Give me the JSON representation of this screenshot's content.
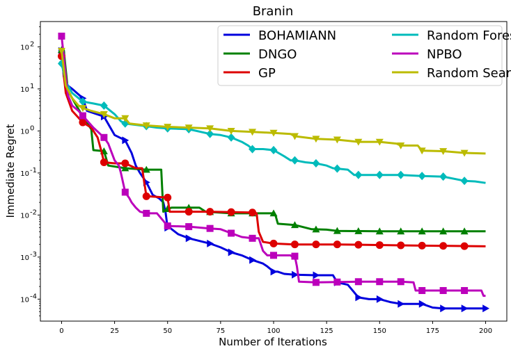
{
  "chart_data": {
    "type": "line",
    "title": "Branin",
    "xlabel": "Number of Iterations",
    "ylabel": "Immediate Regret",
    "yscale": "log",
    "xlim": [
      -10,
      210
    ],
    "ylim": [
      3e-05,
      400
    ],
    "xticks": [
      0,
      25,
      50,
      75,
      100,
      125,
      150,
      175,
      200
    ],
    "xtick_labels": [
      "0",
      "25",
      "50",
      "75",
      "100",
      "125",
      "150",
      "175",
      "200"
    ],
    "yticks": [
      0.0001,
      0.001,
      0.01,
      0.1,
      1,
      10,
      100
    ],
    "ytick_exponents": [
      "-4",
      "-3",
      "-2",
      "-1",
      "0",
      "1",
      "2"
    ],
    "legend_position": "top-right",
    "legend_columns": 2,
    "series": [
      {
        "name": "BOHAMIANN",
        "color": "#0000dd",
        "marker": "triangle-right",
        "points": [
          [
            0,
            80
          ],
          [
            1,
            20
          ],
          [
            2,
            13
          ],
          [
            5,
            10
          ],
          [
            10,
            6
          ],
          [
            12,
            3
          ],
          [
            20,
            2.2
          ],
          [
            25,
            0.8
          ],
          [
            30,
            0.6
          ],
          [
            33,
            0.3
          ],
          [
            35,
            0.15
          ],
          [
            37,
            0.1
          ],
          [
            40,
            0.06
          ],
          [
            43,
            0.03
          ],
          [
            46,
            0.025
          ],
          [
            48,
            0.02
          ],
          [
            49,
            0.012
          ],
          [
            50,
            0.005
          ],
          [
            51,
            0.005
          ],
          [
            55,
            0.0035
          ],
          [
            60,
            0.0028
          ],
          [
            70,
            0.0021
          ],
          [
            75,
            0.0017
          ],
          [
            80,
            0.0013
          ],
          [
            85,
            0.0011
          ],
          [
            90,
            0.00085
          ],
          [
            95,
            0.0007
          ],
          [
            97,
            0.0006
          ],
          [
            100,
            0.00045
          ],
          [
            102,
            0.00045
          ],
          [
            105,
            0.0004
          ],
          [
            110,
            0.00038
          ],
          [
            120,
            0.00037
          ],
          [
            128,
            0.00037
          ],
          [
            130,
            0.00025
          ],
          [
            135,
            0.00022
          ],
          [
            140,
            0.00011
          ],
          [
            145,
            0.0001
          ],
          [
            150,
            0.0001
          ],
          [
            155,
            8.5e-05
          ],
          [
            160,
            7.7e-05
          ],
          [
            170,
            7.7e-05
          ],
          [
            175,
            6.3e-05
          ],
          [
            180,
            6e-05
          ],
          [
            190,
            6e-05
          ],
          [
            200,
            6e-05
          ]
        ],
        "markers_at": [
          0,
          10,
          20,
          30,
          40,
          50,
          60,
          70,
          80,
          90,
          100,
          110,
          120,
          130,
          140,
          150,
          160,
          170,
          180,
          190,
          200
        ]
      },
      {
        "name": "DNGO",
        "color": "#008000",
        "marker": "triangle-up",
        "points": [
          [
            0,
            85
          ],
          [
            1,
            85
          ],
          [
            3,
            9
          ],
          [
            10,
            2.2
          ],
          [
            14,
            1.1
          ],
          [
            15,
            0.35
          ],
          [
            20,
            0.33
          ],
          [
            22,
            0.15
          ],
          [
            30,
            0.13
          ],
          [
            40,
            0.12
          ],
          [
            47,
            0.12
          ],
          [
            48,
            0.012
          ],
          [
            50,
            0.014
          ],
          [
            52,
            0.015
          ],
          [
            65,
            0.015
          ],
          [
            68,
            0.012
          ],
          [
            80,
            0.011
          ],
          [
            99,
            0.011
          ],
          [
            100,
            0.011
          ],
          [
            101,
            0.0095
          ],
          [
            102,
            0.0062
          ],
          [
            110,
            0.0058
          ],
          [
            118,
            0.0046
          ],
          [
            125,
            0.0045
          ],
          [
            130,
            0.0042
          ],
          [
            150,
            0.0041
          ],
          [
            170,
            0.0041
          ],
          [
            200,
            0.0041
          ]
        ],
        "markers_at": [
          0,
          10,
          20,
          30,
          40,
          50,
          60,
          70,
          80,
          90,
          100,
          110,
          120,
          130,
          140,
          150,
          160,
          170,
          180,
          190
        ]
      },
      {
        "name": "GP",
        "color": "#dd0000",
        "marker": "circle",
        "points": [
          [
            0,
            60
          ],
          [
            2,
            8
          ],
          [
            5,
            3
          ],
          [
            10,
            1.6
          ],
          [
            14,
            1.2
          ],
          [
            17,
            0.7
          ],
          [
            19,
            0.3
          ],
          [
            20,
            0.18
          ],
          [
            25,
            0.17
          ],
          [
            30,
            0.17
          ],
          [
            35,
            0.13
          ],
          [
            38,
            0.13
          ],
          [
            39,
            0.06
          ],
          [
            40,
            0.028
          ],
          [
            45,
            0.027
          ],
          [
            50,
            0.026
          ],
          [
            51,
            0.012
          ],
          [
            60,
            0.012
          ],
          [
            70,
            0.012
          ],
          [
            90,
            0.0115
          ],
          [
            92,
            0.011
          ],
          [
            93,
            0.004
          ],
          [
            95,
            0.0023
          ],
          [
            100,
            0.0021
          ],
          [
            110,
            0.002
          ],
          [
            130,
            0.002
          ],
          [
            160,
            0.0019
          ],
          [
            200,
            0.0018
          ]
        ],
        "markers_at": [
          0,
          10,
          20,
          30,
          40,
          50,
          60,
          70,
          80,
          90,
          100,
          110,
          120,
          130,
          140,
          150,
          160,
          170,
          180,
          190
        ]
      },
      {
        "name": "Random Forest",
        "color": "#00bbbb",
        "marker": "diamond",
        "points": [
          [
            -1,
            45
          ],
          [
            0,
            40
          ],
          [
            2,
            15
          ],
          [
            5,
            8
          ],
          [
            10,
            5
          ],
          [
            15,
            4.5
          ],
          [
            20,
            4
          ],
          [
            25,
            2.5
          ],
          [
            28,
            1.7
          ],
          [
            30,
            1.5
          ],
          [
            35,
            1.4
          ],
          [
            40,
            1.3
          ],
          [
            45,
            1.2
          ],
          [
            50,
            1.15
          ],
          [
            60,
            1.1
          ],
          [
            70,
            0.85
          ],
          [
            75,
            0.8
          ],
          [
            80,
            0.7
          ],
          [
            85,
            0.55
          ],
          [
            88,
            0.45
          ],
          [
            90,
            0.37
          ],
          [
            95,
            0.37
          ],
          [
            100,
            0.35
          ],
          [
            105,
            0.25
          ],
          [
            108,
            0.2
          ],
          [
            110,
            0.2
          ],
          [
            115,
            0.18
          ],
          [
            120,
            0.17
          ],
          [
            125,
            0.15
          ],
          [
            128,
            0.13
          ],
          [
            135,
            0.12
          ],
          [
            138,
            0.09
          ],
          [
            140,
            0.09
          ],
          [
            150,
            0.09
          ],
          [
            160,
            0.09
          ],
          [
            170,
            0.085
          ],
          [
            180,
            0.082
          ],
          [
            190,
            0.065
          ],
          [
            195,
            0.063
          ],
          [
            200,
            0.058
          ]
        ],
        "markers_at": [
          0,
          10,
          20,
          30,
          40,
          50,
          60,
          70,
          80,
          90,
          100,
          110,
          120,
          130,
          140,
          150,
          160,
          170,
          180,
          190
        ]
      },
      {
        "name": "NPBO",
        "color": "#bb00bb",
        "marker": "square",
        "points": [
          [
            -1,
            180
          ],
          [
            0,
            180
          ],
          [
            1,
            60
          ],
          [
            2,
            20
          ],
          [
            3,
            7
          ],
          [
            5,
            4
          ],
          [
            8,
            3
          ],
          [
            10,
            2.3
          ],
          [
            15,
            1.2
          ],
          [
            20,
            0.7
          ],
          [
            22,
            0.5
          ],
          [
            25,
            0.2
          ],
          [
            27,
            0.15
          ],
          [
            28,
            0.1
          ],
          [
            30,
            0.035
          ],
          [
            32,
            0.025
          ],
          [
            33,
            0.02
          ],
          [
            35,
            0.015
          ],
          [
            37,
            0.012
          ],
          [
            40,
            0.011
          ],
          [
            45,
            0.011
          ],
          [
            50,
            0.0055
          ],
          [
            60,
            0.0053
          ],
          [
            70,
            0.0048
          ],
          [
            75,
            0.0046
          ],
          [
            80,
            0.0037
          ],
          [
            85,
            0.003
          ],
          [
            90,
            0.0028
          ],
          [
            93,
            0.0028
          ],
          [
            94,
            0.002
          ],
          [
            95,
            0.0014
          ],
          [
            97,
            0.0011
          ],
          [
            100,
            0.0011
          ],
          [
            108,
            0.0011
          ],
          [
            109,
            0.001
          ],
          [
            110,
            0.00105
          ],
          [
            111,
            0.0006
          ],
          [
            112,
            0.00026
          ],
          [
            120,
            0.00025
          ],
          [
            140,
            0.00026
          ],
          [
            160,
            0.00026
          ],
          [
            166,
            0.00025
          ],
          [
            167,
            0.00016
          ],
          [
            180,
            0.00016
          ],
          [
            198,
            0.00016
          ],
          [
            199,
            0.00012
          ],
          [
            200,
            0.00012
          ]
        ],
        "markers_at": [
          0,
          10,
          20,
          30,
          40,
          50,
          60,
          70,
          80,
          90,
          100,
          110,
          120,
          130,
          140,
          150,
          160,
          170,
          180,
          190
        ]
      },
      {
        "name": "Random Search",
        "color": "#bbbb00",
        "marker": "triangle-down",
        "points": [
          [
            0,
            80
          ],
          [
            2,
            12
          ],
          [
            5,
            6
          ],
          [
            8,
            4
          ],
          [
            10,
            3.5
          ],
          [
            14,
            3
          ],
          [
            20,
            2.5
          ],
          [
            25,
            2
          ],
          [
            30,
            2
          ],
          [
            32,
            1.5
          ],
          [
            40,
            1.35
          ],
          [
            50,
            1.25
          ],
          [
            60,
            1.2
          ],
          [
            70,
            1.15
          ],
          [
            80,
            1
          ],
          [
            90,
            0.95
          ],
          [
            100,
            0.9
          ],
          [
            108,
            0.85
          ],
          [
            110,
            0.75
          ],
          [
            120,
            0.65
          ],
          [
            130,
            0.62
          ],
          [
            140,
            0.55
          ],
          [
            150,
            0.55
          ],
          [
            158,
            0.5
          ],
          [
            160,
            0.45
          ],
          [
            168,
            0.45
          ],
          [
            170,
            0.34
          ],
          [
            180,
            0.33
          ],
          [
            190,
            0.3
          ],
          [
            200,
            0.29
          ]
        ],
        "markers_at": [
          0,
          10,
          20,
          30,
          40,
          50,
          60,
          70,
          80,
          90,
          100,
          110,
          120,
          130,
          140,
          150,
          160,
          170,
          180,
          190
        ]
      }
    ]
  }
}
